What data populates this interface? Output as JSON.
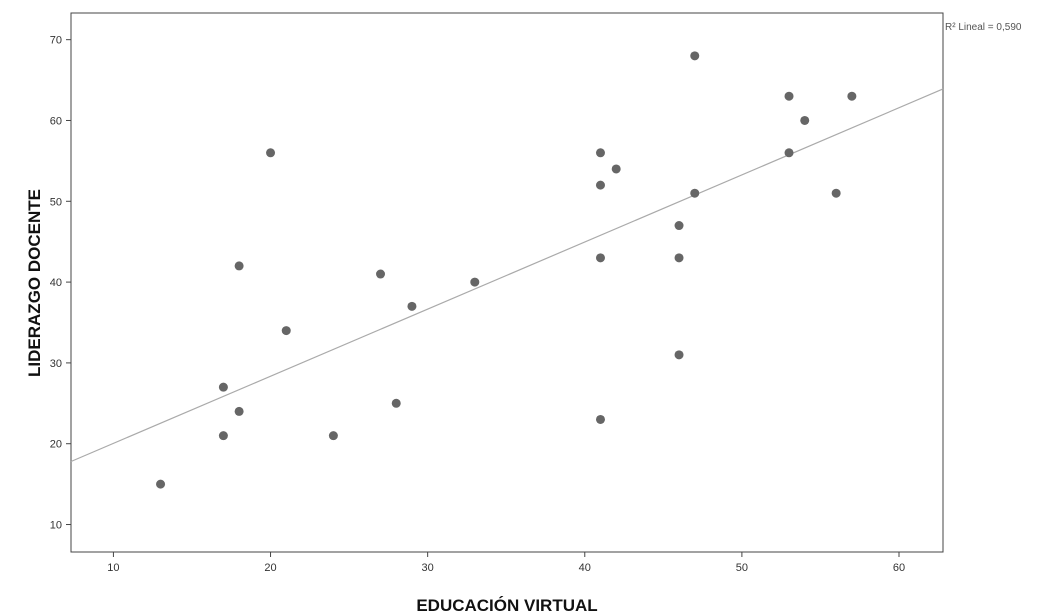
{
  "chart_data": {
    "type": "scatter",
    "title": "",
    "xlabel": "EDUCACIÓN VIRTUAL",
    "ylabel": "LIDERAZGO DOCENTE",
    "xlim": [
      7.3,
      62.8
    ],
    "ylim": [
      6.6,
      73.3
    ],
    "xticks": [
      "10",
      "20",
      "30",
      "40",
      "50",
      "60"
    ],
    "yticks": [
      "10",
      "20",
      "30",
      "40",
      "50",
      "60",
      "70"
    ],
    "grid": false,
    "legend": "none",
    "point_color": "#666666",
    "line_color": "#aaaaaa",
    "points": [
      {
        "x": 13,
        "y": 15
      },
      {
        "x": 17,
        "y": 21
      },
      {
        "x": 17,
        "y": 27
      },
      {
        "x": 18,
        "y": 24
      },
      {
        "x": 18,
        "y": 42
      },
      {
        "x": 20,
        "y": 56
      },
      {
        "x": 21,
        "y": 34
      },
      {
        "x": 24,
        "y": 21
      },
      {
        "x": 27,
        "y": 41
      },
      {
        "x": 28,
        "y": 25
      },
      {
        "x": 29,
        "y": 37
      },
      {
        "x": 33,
        "y": 40
      },
      {
        "x": 41,
        "y": 23
      },
      {
        "x": 41,
        "y": 43
      },
      {
        "x": 41,
        "y": 52
      },
      {
        "x": 41,
        "y": 56
      },
      {
        "x": 42,
        "y": 54
      },
      {
        "x": 46,
        "y": 31
      },
      {
        "x": 46,
        "y": 43
      },
      {
        "x": 46,
        "y": 47
      },
      {
        "x": 47,
        "y": 51
      },
      {
        "x": 47,
        "y": 68
      },
      {
        "x": 53,
        "y": 56
      },
      {
        "x": 53,
        "y": 63
      },
      {
        "x": 54,
        "y": 60
      },
      {
        "x": 56,
        "y": 51
      },
      {
        "x": 57,
        "y": 63
      }
    ],
    "fit_line": {
      "label": "R² Lineal = 0,590",
      "x": [
        7.3,
        62.8
      ],
      "y": [
        17.8,
        63.9
      ]
    }
  }
}
